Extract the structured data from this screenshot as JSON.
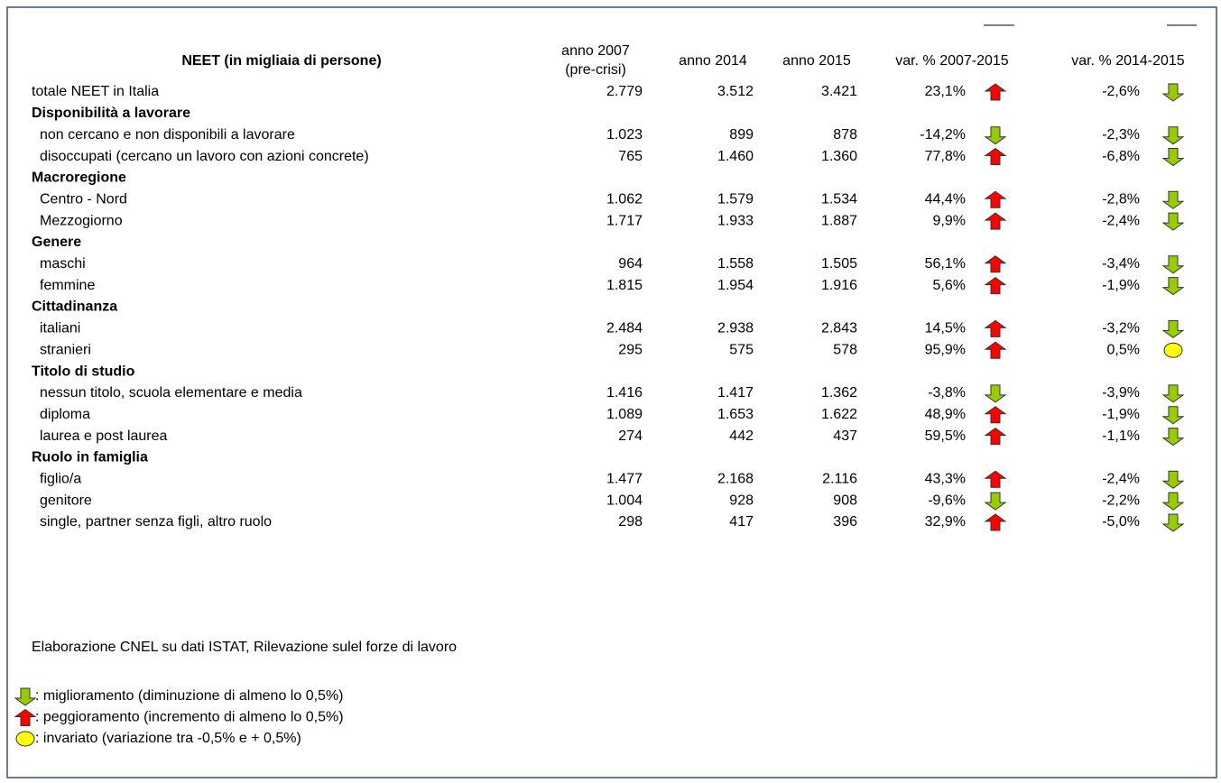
{
  "table": {
    "title": "NEET (in migliaia di persone)",
    "columns": [
      [
        "anno 2007",
        "(pre-crisi)"
      ],
      [
        "anno 2014"
      ],
      [
        "anno 2015"
      ],
      [
        "var. % 2007-2015"
      ],
      [
        "var. % 2014-2015"
      ]
    ],
    "rows": [
      {
        "label": "totale NEET in Italia",
        "values": [
          "2.779",
          "3.512",
          "3.421",
          "23,1%",
          "-2,6%"
        ],
        "icons": [
          "up",
          "down"
        ]
      },
      {
        "label": "Disponibilità a lavorare",
        "kind": "heading"
      },
      {
        "label": "non cercano e non disponibili a lavorare",
        "values": [
          "1.023",
          "899",
          "878",
          "-14,2%",
          "-2,3%"
        ],
        "icons": [
          "down",
          "down"
        ]
      },
      {
        "label": "disoccupati (cercano un lavoro con azioni concrete)",
        "values": [
          "765",
          "1.460",
          "1.360",
          "77,8%",
          "-6,8%"
        ],
        "icons": [
          "up",
          "down"
        ]
      },
      {
        "label": "Macroregione",
        "kind": "heading"
      },
      {
        "label": "Centro - Nord",
        "values": [
          "1.062",
          "1.579",
          "1.534",
          "44,4%",
          "-2,8%"
        ],
        "icons": [
          "up",
          "down"
        ]
      },
      {
        "label": "Mezzogiorno",
        "values": [
          "1.717",
          "1.933",
          "1.887",
          "9,9%",
          "-2,4%"
        ],
        "icons": [
          "up",
          "down"
        ]
      },
      {
        "label": "Genere",
        "kind": "heading"
      },
      {
        "label": "maschi",
        "values": [
          "964",
          "1.558",
          "1.505",
          "56,1%",
          "-3,4%"
        ],
        "icons": [
          "up",
          "down"
        ]
      },
      {
        "label": "femmine",
        "values": [
          "1.815",
          "1.954",
          "1.916",
          "5,6%",
          "-1,9%"
        ],
        "icons": [
          "up",
          "down"
        ]
      },
      {
        "label": "Cittadinanza",
        "kind": "heading"
      },
      {
        "label": "italiani",
        "values": [
          "2.484",
          "2.938",
          "2.843",
          "14,5%",
          "-3,2%"
        ],
        "icons": [
          "up",
          "down"
        ]
      },
      {
        "label": "stranieri",
        "values": [
          "295",
          "575",
          "578",
          "95,9%",
          "0,5%"
        ],
        "icons": [
          "up",
          "same"
        ]
      },
      {
        "label": "Titolo di studio",
        "kind": "heading"
      },
      {
        "label": "nessun titolo, scuola elementare e media",
        "values": [
          "1.416",
          "1.417",
          "1.362",
          "-3,8%",
          "-3,9%"
        ],
        "icons": [
          "down",
          "down"
        ]
      },
      {
        "label": "diploma",
        "values": [
          "1.089",
          "1.653",
          "1.622",
          "48,9%",
          "-1,9%"
        ],
        "icons": [
          "up",
          "down"
        ]
      },
      {
        "label": "laurea e post laurea",
        "values": [
          "274",
          "442",
          "437",
          "59,5%",
          "-1,1%"
        ],
        "icons": [
          "up",
          "down"
        ]
      },
      {
        "label": "Ruolo in famiglia",
        "kind": "heading"
      },
      {
        "label": "figlio/a",
        "values": [
          "1.477",
          "2.168",
          "2.116",
          "43,3%",
          "-2,4%"
        ],
        "icons": [
          "up",
          "down"
        ]
      },
      {
        "label": "genitore",
        "values": [
          "1.004",
          "928",
          "908",
          "-9,6%",
          "-2,2%"
        ],
        "icons": [
          "down",
          "down"
        ]
      },
      {
        "label": "single, partner senza figli, altro ruolo",
        "values": [
          "298",
          "417",
          "396",
          "32,9%",
          "-5,0%"
        ],
        "icons": [
          "up",
          "down"
        ]
      }
    ]
  },
  "source": "Elaborazione CNEL su dati ISTAT, Rilevazione sulel forze di lavoro",
  "legend": [
    {
      "icon": "down",
      "text": ": miglioramento (diminuzione di almeno lo 0,5%)"
    },
    {
      "icon": "up",
      "text": ": peggioramento (incremento di almeno lo 0,5%)"
    },
    {
      "icon": "same",
      "text": ": invariato (variazione tra -0,5% e + 0,5%)"
    }
  ]
}
